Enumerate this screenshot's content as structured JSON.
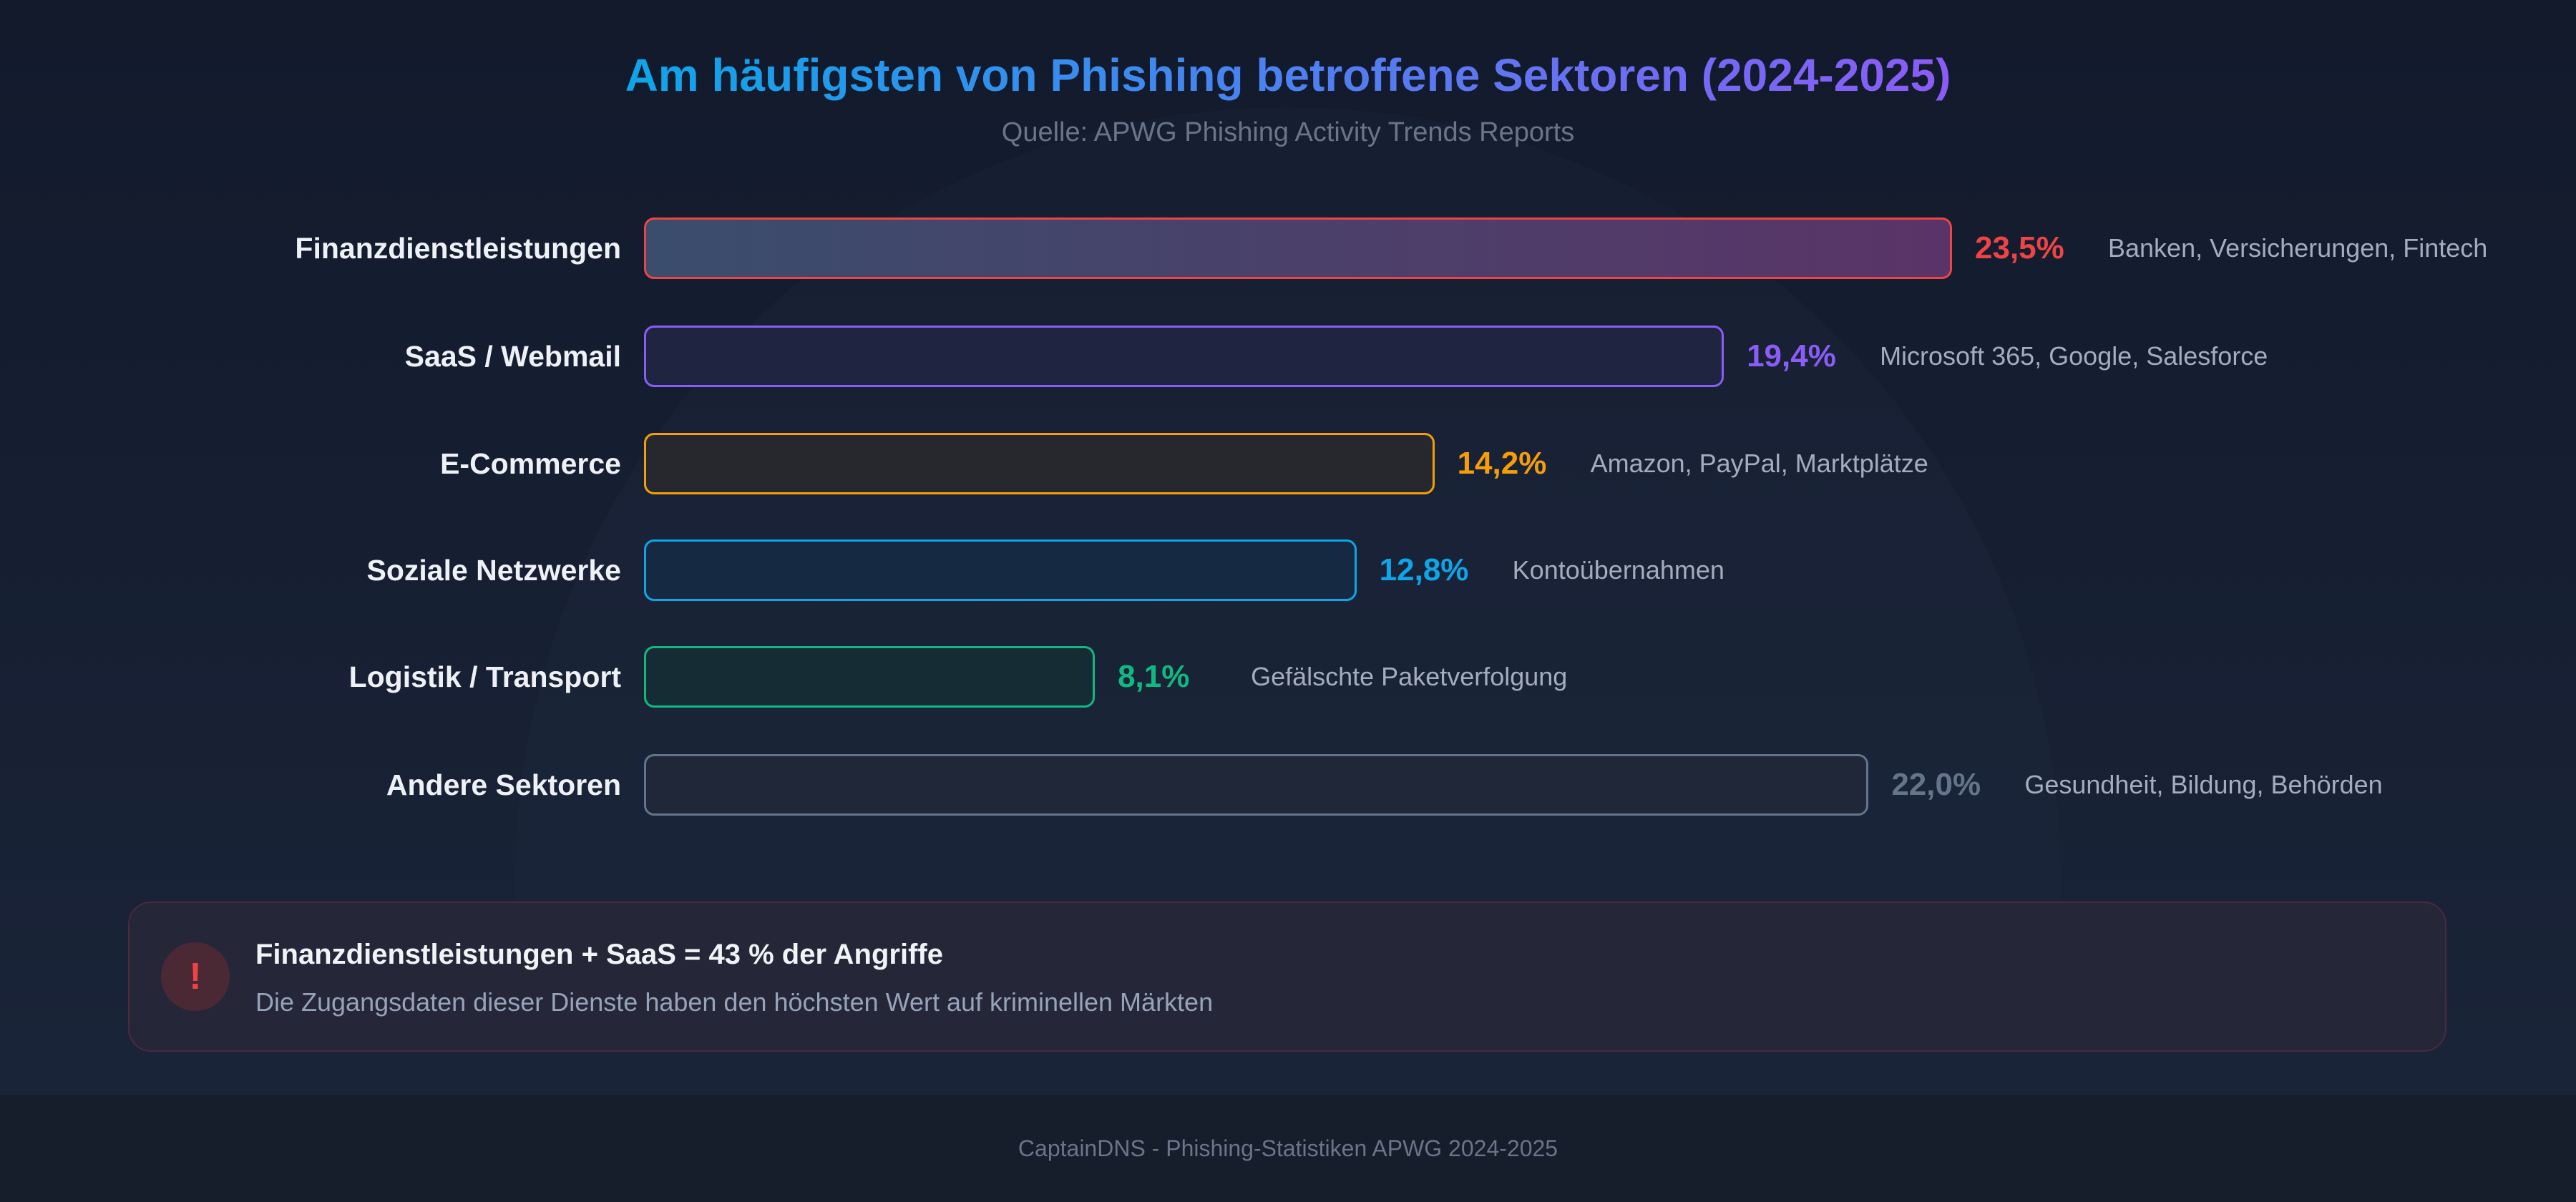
{
  "chart_data": {
    "type": "bar",
    "orientation": "horizontal",
    "title": "Am häufigsten von Phishing betroffene Sektoren (2024-2025)",
    "subtitle": "Quelle: APWG Phishing Activity Trends Reports",
    "unit": "%",
    "categories": [
      "Finanzdienstleistungen",
      "SaaS / Webmail",
      "E-Commerce",
      "Soziale Netzwerke",
      "Logistik / Transport",
      "Andere Sektoren"
    ],
    "values": [
      23.5,
      19.4,
      14.2,
      12.8,
      8.1,
      22.0
    ],
    "value_labels": [
      "23,5%",
      "19,4%",
      "14,2%",
      "12,8%",
      "8,1%",
      "22,0%"
    ],
    "descriptions": [
      "Banken, Versicherungen, Fintech",
      "Microsoft 365, Google, Salesforce",
      "Amazon, PayPal, Marktplätze",
      "Kontoübernahmen",
      "Gefälschte Paketverfolgung",
      "Gesundheit, Bildung, Behörden"
    ],
    "colors": [
      "#ef4444",
      "#8b5cf6",
      "#f59e0b",
      "#0ea5e9",
      "#10b981",
      "#64748b"
    ],
    "fills": [
      "linear-gradient(90deg,#3a4d6c,#5a3468)",
      "#1f2540",
      "#27282d",
      "#152a42",
      "#162c35",
      "#1f2738"
    ],
    "grid": false,
    "legend": "none"
  },
  "callout": {
    "icon": "exclamation-icon",
    "icon_glyph": "!",
    "title": "Finanzdienstleistungen + SaaS = 43 % der Angriffe",
    "subtitle": "Die Zugangsdaten dieser Dienste haben den höchsten Wert auf kriminellen Märkten"
  },
  "footer": {
    "text": "CaptainDNS - Phishing-Statistiken APWG 2024-2025"
  }
}
